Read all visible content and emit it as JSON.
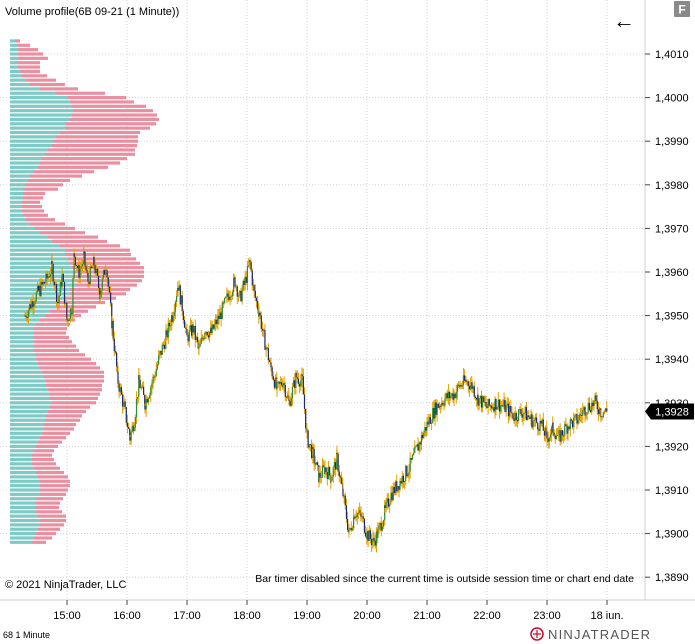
{
  "chart_data": {
    "type": "volume-profile-candlestick",
    "title": "Volume profile(6B 09-21 (1 Minute))",
    "instrument": "6B 09-21",
    "footer_left": "68  1 Minute",
    "copyright": "© 2021 NinjaTrader, LLC",
    "status_message": "Bar timer disabled since the current time is outside session time or chart end date",
    "brand": "NINJATRADER",
    "panel_button": "F",
    "back_arrow": "←",
    "current_price": "1,3928",
    "ylim": [
      1.3885,
      1.4023
    ],
    "y_ticks": [
      {
        "v": 1.401,
        "label": "1,4010"
      },
      {
        "v": 1.4,
        "label": "1,4000"
      },
      {
        "v": 1.399,
        "label": "1,3990"
      },
      {
        "v": 1.398,
        "label": "1,3980"
      },
      {
        "v": 1.397,
        "label": "1,3970"
      },
      {
        "v": 1.396,
        "label": "1,3960"
      },
      {
        "v": 1.395,
        "label": "1,3950"
      },
      {
        "v": 1.394,
        "label": "1,3940"
      },
      {
        "v": 1.393,
        "label": "1,3930"
      },
      {
        "v": 1.392,
        "label": "1,3920"
      },
      {
        "v": 1.391,
        "label": "1,3910"
      },
      {
        "v": 1.39,
        "label": "1,3900"
      },
      {
        "v": 1.389,
        "label": "1,3890"
      }
    ],
    "xlim": [
      14.3,
      24.45
    ],
    "x_ticks": [
      {
        "h": 15,
        "label": "15:00"
      },
      {
        "h": 16,
        "label": "16:00"
      },
      {
        "h": 17,
        "label": "17:00"
      },
      {
        "h": 18,
        "label": "18:00"
      },
      {
        "h": 19,
        "label": "19:00"
      },
      {
        "h": 20,
        "label": "20:00"
      },
      {
        "h": 21,
        "label": "21:00"
      },
      {
        "h": 22,
        "label": "22:00"
      },
      {
        "h": 23,
        "label": "23:00"
      },
      {
        "h": 24,
        "label": "18 iun."
      }
    ],
    "colors": {
      "up_volume": "#7ecbc6",
      "down_volume": "#e98fa0",
      "wick": "#e0a100",
      "body": "#1a2a6c",
      "up_body": "#2e8b3a",
      "grid": "#bbbbbb",
      "price_badge": "#000000"
    },
    "price_path": [
      [
        14.3,
        1.395
      ],
      [
        14.45,
        1.3954
      ],
      [
        14.55,
        1.3956
      ],
      [
        14.65,
        1.3958
      ],
      [
        14.75,
        1.3961
      ],
      [
        14.85,
        1.3953
      ],
      [
        14.92,
        1.3959
      ],
      [
        15.0,
        1.3949
      ],
      [
        15.08,
        1.3952
      ],
      [
        15.12,
        1.3964
      ],
      [
        15.2,
        1.396
      ],
      [
        15.28,
        1.3963
      ],
      [
        15.35,
        1.3958
      ],
      [
        15.45,
        1.3962
      ],
      [
        15.55,
        1.3955
      ],
      [
        15.65,
        1.3962
      ],
      [
        15.75,
        1.3948
      ],
      [
        15.85,
        1.3935
      ],
      [
        15.95,
        1.3929
      ],
      [
        16.05,
        1.3922
      ],
      [
        16.12,
        1.3926
      ],
      [
        16.2,
        1.3935
      ],
      [
        16.3,
        1.393
      ],
      [
        16.45,
        1.3936
      ],
      [
        16.55,
        1.3941
      ],
      [
        16.65,
        1.3945
      ],
      [
        16.75,
        1.395
      ],
      [
        16.85,
        1.3957
      ],
      [
        16.92,
        1.3952
      ],
      [
        17.0,
        1.3945
      ],
      [
        17.1,
        1.3947
      ],
      [
        17.2,
        1.3942
      ],
      [
        17.3,
        1.3947
      ],
      [
        17.4,
        1.3946
      ],
      [
        17.55,
        1.395
      ],
      [
        17.7,
        1.3955
      ],
      [
        17.8,
        1.3958
      ],
      [
        17.88,
        1.3954
      ],
      [
        17.95,
        1.3957
      ],
      [
        18.05,
        1.3962
      ],
      [
        18.12,
        1.3955
      ],
      [
        18.2,
        1.3951
      ],
      [
        18.28,
        1.3945
      ],
      [
        18.4,
        1.3938
      ],
      [
        18.5,
        1.3933
      ],
      [
        18.6,
        1.3935
      ],
      [
        18.7,
        1.393
      ],
      [
        18.82,
        1.3936
      ],
      [
        18.92,
        1.3935
      ],
      [
        19.0,
        1.3922
      ],
      [
        19.1,
        1.3918
      ],
      [
        19.2,
        1.3913
      ],
      [
        19.3,
        1.3915
      ],
      [
        19.4,
        1.3913
      ],
      [
        19.5,
        1.3917
      ],
      [
        19.6,
        1.3909
      ],
      [
        19.7,
        1.39
      ],
      [
        19.8,
        1.3905
      ],
      [
        19.9,
        1.3904
      ],
      [
        20.0,
        1.39
      ],
      [
        20.1,
        1.3898
      ],
      [
        20.18,
        1.39
      ],
      [
        20.3,
        1.3905
      ],
      [
        20.4,
        1.3909
      ],
      [
        20.55,
        1.3912
      ],
      [
        20.7,
        1.3915
      ],
      [
        20.85,
        1.392
      ],
      [
        21.0,
        1.3925
      ],
      [
        21.15,
        1.3929
      ],
      [
        21.3,
        1.3931
      ],
      [
        21.45,
        1.3932
      ],
      [
        21.55,
        1.3934
      ],
      [
        21.65,
        1.3935
      ],
      [
        21.75,
        1.3934
      ],
      [
        21.85,
        1.3931
      ],
      [
        22.0,
        1.3929
      ],
      [
        22.15,
        1.393
      ],
      [
        22.3,
        1.3929
      ],
      [
        22.45,
        1.3927
      ],
      [
        22.6,
        1.3928
      ],
      [
        22.75,
        1.3926
      ],
      [
        22.9,
        1.3925
      ],
      [
        23.0,
        1.3922
      ],
      [
        23.1,
        1.3924
      ],
      [
        23.2,
        1.3922
      ],
      [
        23.35,
        1.3925
      ],
      [
        23.5,
        1.3926
      ],
      [
        23.65,
        1.3929
      ],
      [
        23.8,
        1.393
      ],
      [
        23.9,
        1.3928
      ],
      [
        24.0,
        1.3928
      ]
    ],
    "profile": {
      "top_price": 1.4013,
      "bottom_price": 1.3897,
      "step": 0.0001,
      "up_volumes": [
        5,
        8,
        8,
        8,
        8,
        8,
        8,
        10,
        12,
        16,
        20,
        30,
        45,
        58,
        60,
        62,
        63,
        62,
        59,
        56,
        55,
        50,
        46,
        44,
        42,
        38,
        35,
        32,
        30,
        28,
        24,
        20,
        18,
        15,
        13,
        13,
        13,
        12,
        12,
        12,
        13,
        15,
        20,
        25,
        30,
        38,
        42,
        50,
        55,
        55,
        58,
        60,
        62,
        64,
        66,
        66,
        65,
        60,
        60,
        56,
        50,
        46,
        40,
        35,
        30,
        26,
        24,
        24,
        24,
        24,
        24,
        24,
        25,
        26,
        28,
        30,
        32,
        34,
        36,
        36,
        38,
        40,
        40,
        42,
        40,
        38,
        36,
        36,
        34,
        34,
        32,
        30,
        28,
        26,
        24,
        22,
        22,
        22,
        24,
        26,
        28,
        30,
        30,
        30,
        30,
        28,
        26,
        25,
        26,
        28,
        30,
        30,
        28,
        26,
        24,
        22
      ],
      "down_volumes": [
        5,
        12,
        20,
        25,
        30,
        22,
        22,
        20,
        25,
        30,
        35,
        38,
        50,
        58,
        64,
        74,
        80,
        85,
        90,
        90,
        85,
        80,
        82,
        84,
        85,
        87,
        90,
        85,
        80,
        70,
        60,
        52,
        42,
        38,
        35,
        22,
        20,
        18,
        20,
        22,
        25,
        30,
        35,
        40,
        45,
        50,
        55,
        60,
        65,
        66,
        68,
        70,
        72,
        70,
        68,
        66,
        62,
        60,
        56,
        50,
        45,
        40,
        38,
        36,
        35,
        34,
        33,
        32,
        35,
        38,
        42,
        45,
        50,
        55,
        58,
        60,
        62,
        60,
        58,
        56,
        54,
        50,
        48,
        44,
        40,
        38,
        36,
        34,
        32,
        30,
        28,
        26,
        24,
        22,
        20,
        20,
        22,
        24,
        26,
        28,
        30,
        30,
        30,
        28,
        26,
        25,
        24,
        24,
        26,
        28,
        26,
        24,
        22,
        20,
        18,
        14
      ]
    }
  }
}
